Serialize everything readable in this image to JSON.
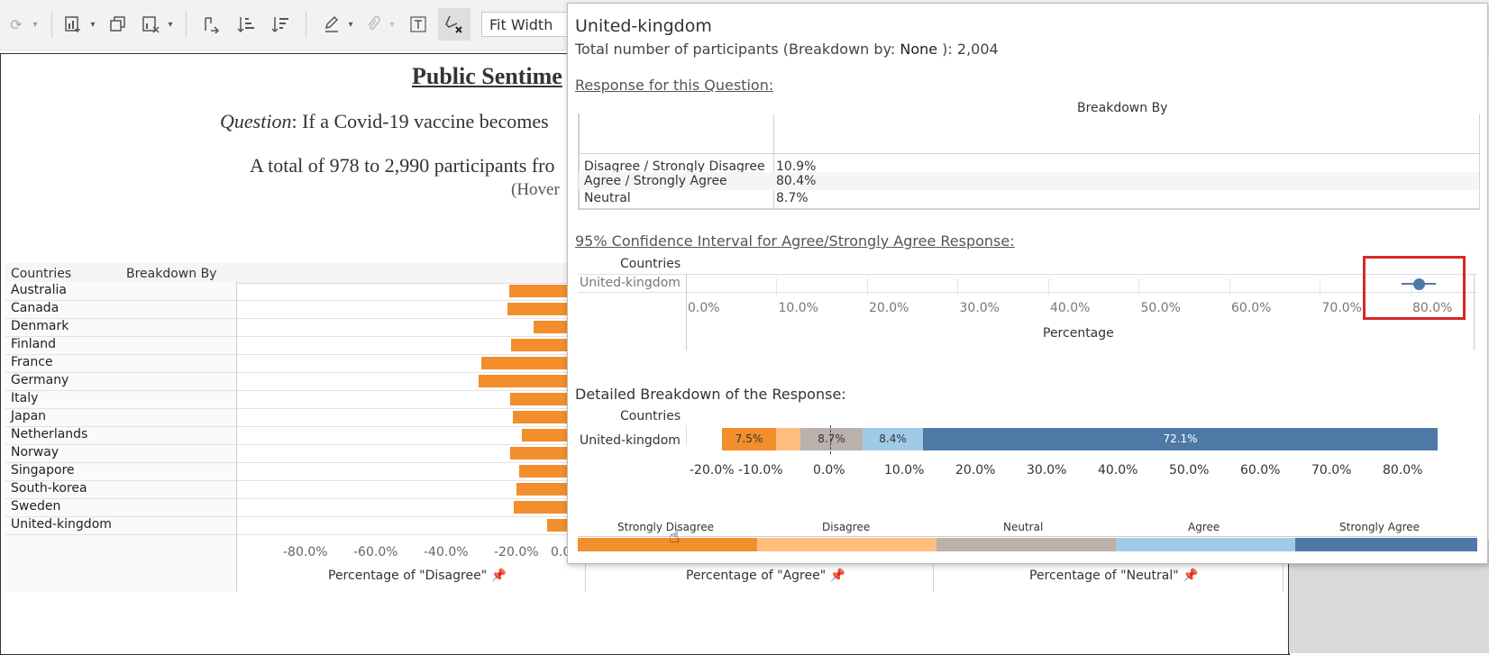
{
  "toolbar": {
    "fit_width": "Fit Width",
    "icons": [
      "refresh-icon",
      "add-chart-icon",
      "duplicate-icon",
      "clear-sheet-icon",
      "swap-axes-icon",
      "sort-ascending-icon",
      "sort-descending-icon",
      "highlight-icon",
      "clip-icon",
      "text-icon",
      "clear-format-icon"
    ]
  },
  "dashboard": {
    "title": "Public Sentime",
    "question_label": "Question",
    "question_text": ": If a Covid-19 vaccine becomes",
    "total_text": "A total of 978 to 2,990 participants fro",
    "hover_hint": "(Hover",
    "col_countries": "Countries",
    "col_breakdown": "Breakdown By",
    "countries": [
      "Australia",
      "Canada",
      "Denmark",
      "Finland",
      "France",
      "Germany",
      "Italy",
      "Japan",
      "Netherlands",
      "Norway",
      "Singapore",
      "South-korea",
      "Sweden",
      "United-kingdom"
    ],
    "axis_ticks": [
      "-80.0%",
      "-60.0%",
      "-40.0%",
      "-20.0%",
      "0.0"
    ],
    "axis_disagree": "Percentage of \"Disagree\" 📌",
    "axis_agree": "Percentage of \"Agree\" 📌",
    "axis_neutral": "Percentage of \"Neutral\" 📌",
    "bar_color": "#f28e2b"
  },
  "tooltip": {
    "country": "United-kingdom",
    "total_prefix": "Total number of participants (Breakdown by: ",
    "total_breakdown": "None",
    "total_suffix": " ): 2,004",
    "response_heading": "Response for this Question:",
    "breakdown_by": "Breakdown By",
    "responses": [
      {
        "label": "Disagree / Strongly Disagree",
        "value": "10.9%"
      },
      {
        "label": "Agree / Strongly Agree",
        "value": "80.4%"
      },
      {
        "label": "Neutral",
        "value": "8.7%"
      }
    ],
    "ci_heading": "95% Confidence Interval for Agree/Strongly Agree Response:",
    "ci_countries": "Countries",
    "ci_country": "United-kingdom",
    "ci_ticks": [
      "0.0%",
      "10.0%",
      "20.0%",
      "30.0%",
      "40.0%",
      "50.0%",
      "60.0%",
      "70.0%",
      "80.0%"
    ],
    "ci_axis_title": "Percentage",
    "ci_estimate": 80.4,
    "detail_heading": "Detailed Breakdown of the Response:",
    "detail_countries": "Countries",
    "detail_country": "United-kingdom",
    "detail_ticks": [
      "-20.0%",
      "-10.0%",
      "0.0%",
      "10.0%",
      "20.0%",
      "30.0%",
      "40.0%",
      "50.0%",
      "60.0%",
      "70.0%",
      "80.0%"
    ],
    "segments": [
      {
        "name": "Strongly Disagree",
        "value": "7.5%",
        "color": "#f28e2b"
      },
      {
        "name": "Disagree",
        "value": "",
        "color": "#ffbe7d"
      },
      {
        "name": "Neutral",
        "value": "8.7%",
        "color": "#bab0ac"
      },
      {
        "name": "Agree",
        "value": "8.4%",
        "color": "#a0cbe8"
      },
      {
        "name": "Strongly Agree",
        "value": "72.1%",
        "color": "#4e79a7"
      }
    ],
    "legend": [
      "Strongly Disagree",
      "Disagree",
      "Neutral",
      "Agree",
      "Strongly Agree"
    ]
  }
}
